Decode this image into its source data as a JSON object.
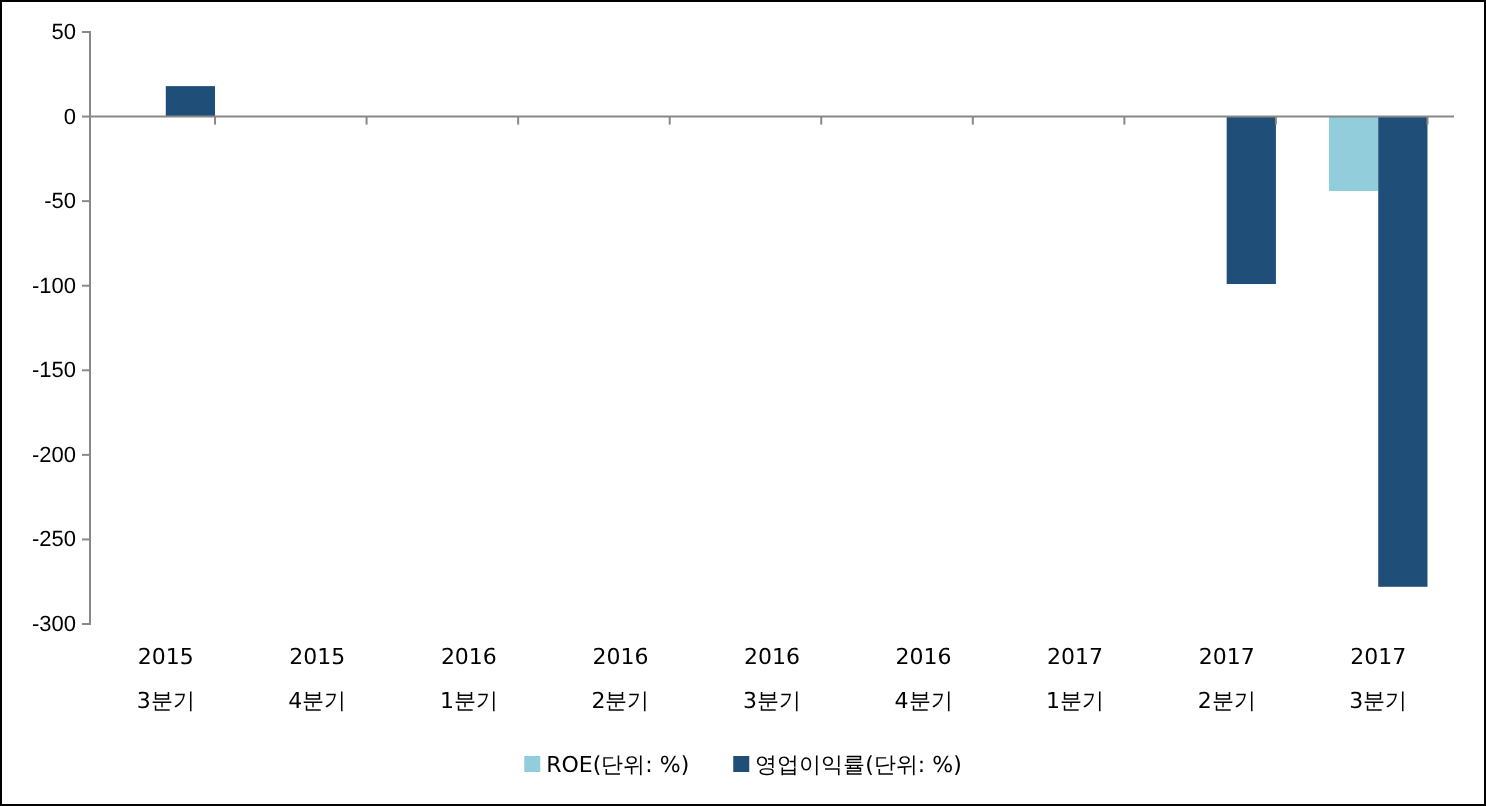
{
  "chart_data": {
    "type": "bar",
    "categories": [
      "2015\n3분기",
      "2015\n4분기",
      "2016\n1분기",
      "2016\n2분기",
      "2016\n3분기",
      "2016\n4분기",
      "2017\n1분기",
      "2017\n2분기",
      "2017\n3분기"
    ],
    "series": [
      {
        "name": "ROE(단위: %)",
        "color": "#92cddc",
        "values": [
          null,
          null,
          null,
          null,
          null,
          null,
          null,
          null,
          -44
        ]
      },
      {
        "name": "영업이익률(단위: %)",
        "color": "#1f4e79",
        "values": [
          18,
          null,
          null,
          null,
          null,
          null,
          null,
          -99,
          -278
        ]
      }
    ],
    "ylim": [
      -300,
      50
    ],
    "yticks": [
      -300,
      -250,
      -200,
      -150,
      -100,
      -50,
      0,
      50
    ],
    "legend": "bottom"
  }
}
